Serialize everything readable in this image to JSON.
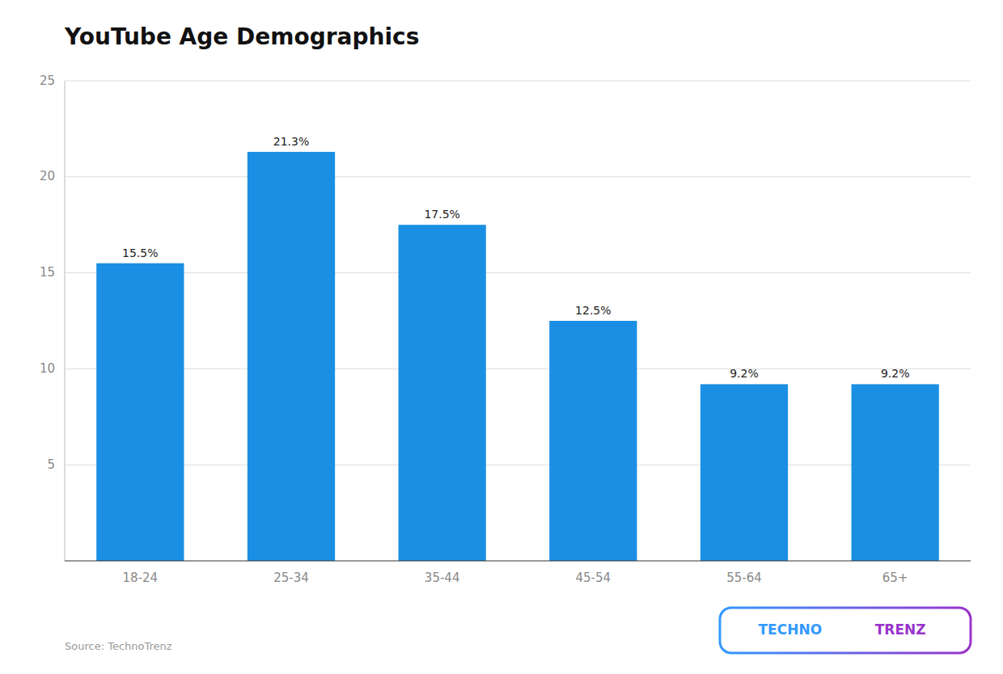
{
  "chart_data": {
    "type": "bar",
    "title": "YouTube Age Demographics",
    "categories": [
      "18-24",
      "25-34",
      "35-44",
      "45-54",
      "55-64",
      "65+"
    ],
    "values": [
      15.5,
      21.3,
      17.5,
      12.5,
      9.2,
      9.2
    ],
    "value_labels": [
      "15.5%",
      "21.3%",
      "17.5%",
      "12.5%",
      "9.2%",
      "9.2%"
    ],
    "data_labels": true,
    "color": "#1a8fe3",
    "ylim": [
      0,
      25
    ],
    "yticks": [
      5,
      10,
      15,
      20,
      25
    ],
    "grid": true,
    "annotations": [
      {
        "text": "Source: TechnoTrenz"
      },
      {
        "text": "TECHNO",
        "color": "#3399ff"
      },
      {
        "text": "TRENZ",
        "color": "#9933cc"
      }
    ]
  }
}
